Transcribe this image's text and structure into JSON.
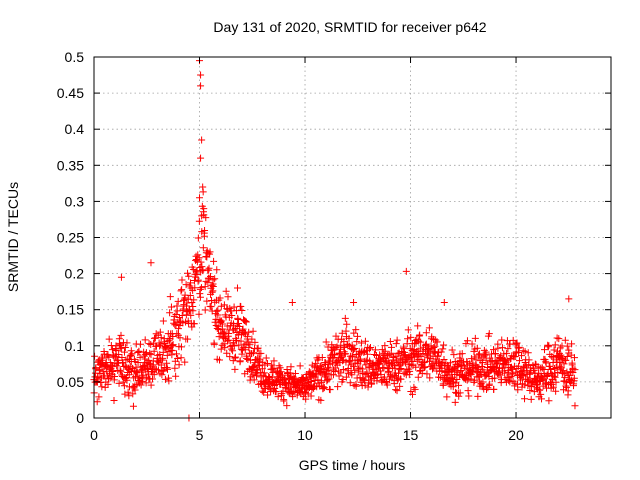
{
  "chart_data": {
    "type": "scatter",
    "title": "Day 131 of 2020, SRMTID for receiver p642",
    "xlabel": "GPS time / hours",
    "ylabel": "SRMTID / TECUs",
    "xlim": [
      0,
      24.5
    ],
    "ylim": [
      0,
      0.5
    ],
    "x_ticks": [
      0,
      5,
      10,
      15,
      20
    ],
    "x_tick_labels": [
      "0",
      "5",
      "10",
      "15",
      "20"
    ],
    "y_ticks": [
      0,
      0.05,
      0.1,
      0.15,
      0.2,
      0.25,
      0.3,
      0.35,
      0.4,
      0.45,
      0.5
    ],
    "y_tick_labels": [
      "0",
      "0.05",
      "0.1",
      "0.15",
      "0.2",
      "0.25",
      "0.3",
      "0.35",
      "0.4",
      "0.45",
      "0.5"
    ],
    "grid": true,
    "marker": "+",
    "series": [
      {
        "name": "SRMTID",
        "color": "#ff0000",
        "x_range": [
          0,
          22.8
        ],
        "profile": [
          [
            0.0,
            0.06,
            0.03
          ],
          [
            0.5,
            0.06,
            0.03
          ],
          [
            1.0,
            0.08,
            0.04
          ],
          [
            1.5,
            0.07,
            0.035
          ],
          [
            2.0,
            0.06,
            0.03
          ],
          [
            2.5,
            0.07,
            0.03
          ],
          [
            3.0,
            0.08,
            0.035
          ],
          [
            3.5,
            0.1,
            0.04
          ],
          [
            4.0,
            0.13,
            0.05
          ],
          [
            4.5,
            0.16,
            0.05
          ],
          [
            4.8,
            0.19,
            0.05
          ],
          [
            5.1,
            0.25,
            0.08
          ],
          [
            5.4,
            0.19,
            0.06
          ],
          [
            6.0,
            0.13,
            0.04
          ],
          [
            6.5,
            0.12,
            0.04
          ],
          [
            7.0,
            0.11,
            0.04
          ],
          [
            7.5,
            0.09,
            0.03
          ],
          [
            8.0,
            0.06,
            0.025
          ],
          [
            9.0,
            0.05,
            0.02
          ],
          [
            10.0,
            0.04,
            0.02
          ],
          [
            11.0,
            0.07,
            0.03
          ],
          [
            12.0,
            0.09,
            0.04
          ],
          [
            13.0,
            0.07,
            0.03
          ],
          [
            14.0,
            0.07,
            0.03
          ],
          [
            15.0,
            0.08,
            0.035
          ],
          [
            16.0,
            0.09,
            0.035
          ],
          [
            17.0,
            0.06,
            0.03
          ],
          [
            18.0,
            0.07,
            0.03
          ],
          [
            19.0,
            0.07,
            0.03
          ],
          [
            20.0,
            0.08,
            0.035
          ],
          [
            21.0,
            0.05,
            0.025
          ],
          [
            22.0,
            0.08,
            0.04
          ],
          [
            22.8,
            0.06,
            0.03
          ]
        ],
        "highlights": [
          {
            "x": 5.0,
            "y": 0.495
          },
          {
            "x": 5.05,
            "y": 0.475
          },
          {
            "x": 5.05,
            "y": 0.46
          },
          {
            "x": 5.1,
            "y": 0.385
          },
          {
            "x": 5.05,
            "y": 0.36
          },
          {
            "x": 5.15,
            "y": 0.32
          },
          {
            "x": 5.0,
            "y": 0.305
          },
          {
            "x": 5.2,
            "y": 0.29
          },
          {
            "x": 5.1,
            "y": 0.28
          },
          {
            "x": 2.7,
            "y": 0.215
          },
          {
            "x": 1.3,
            "y": 0.195
          },
          {
            "x": 14.8,
            "y": 0.203
          },
          {
            "x": 9.4,
            "y": 0.16
          },
          {
            "x": 22.5,
            "y": 0.165
          },
          {
            "x": 4.5,
            "y": 0.0
          },
          {
            "x": 6.8,
            "y": 0.18
          },
          {
            "x": 12.3,
            "y": 0.16
          },
          {
            "x": 16.6,
            "y": 0.16
          }
        ],
        "n_points": 1700
      }
    ]
  }
}
